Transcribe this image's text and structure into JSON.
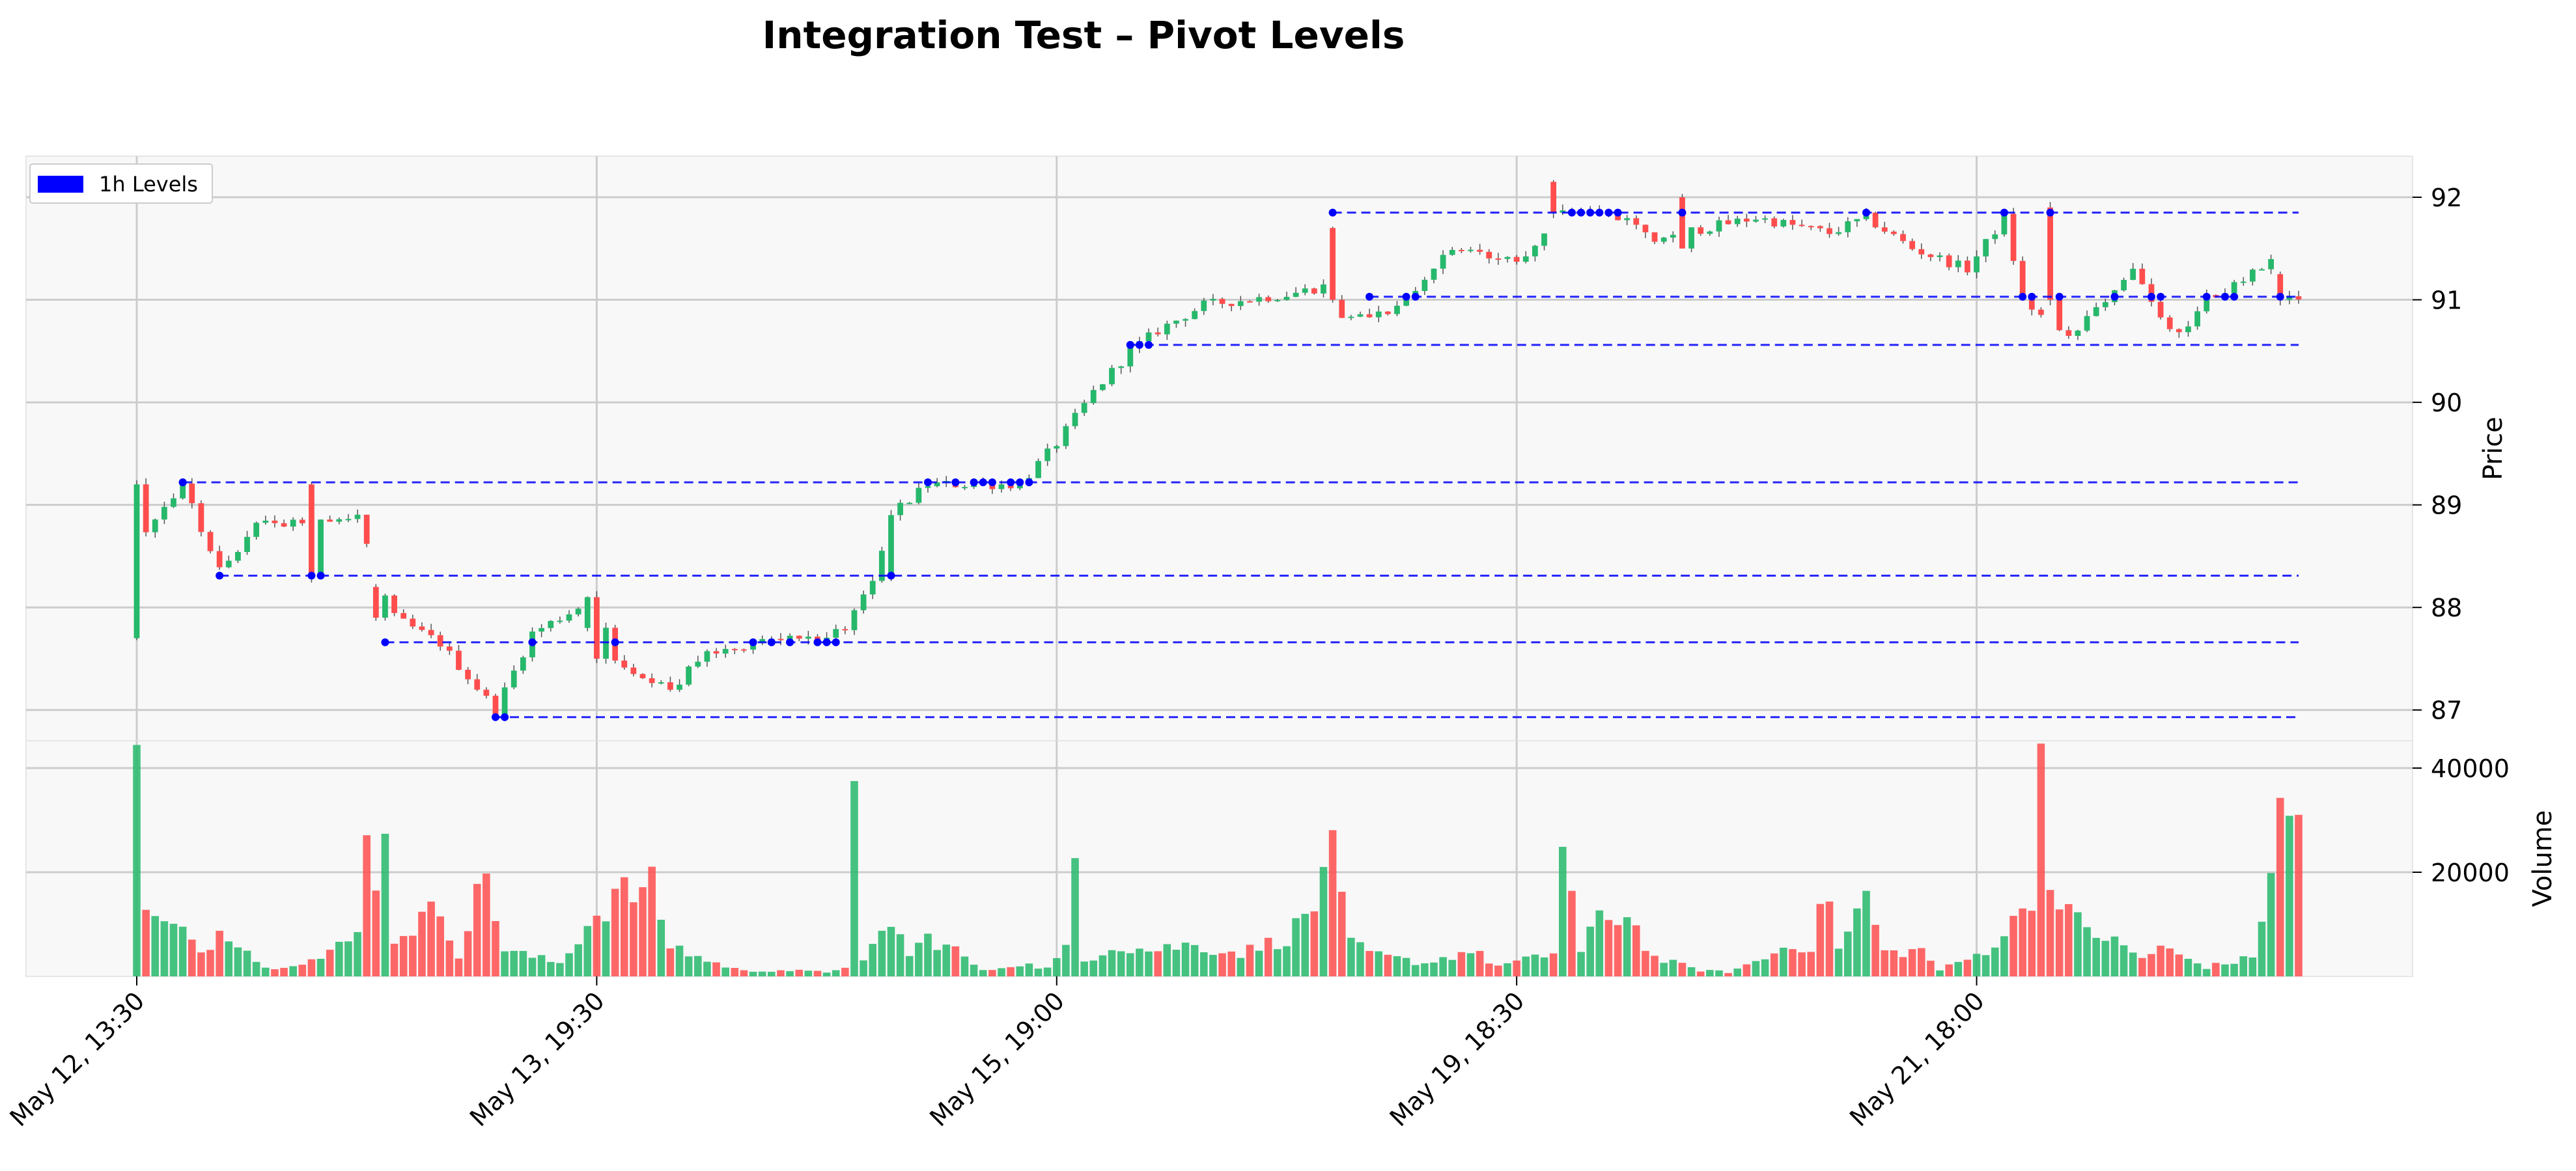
{
  "chart_data": {
    "type": "candlestick",
    "title": "Integration Test – Pivot Levels",
    "legend": {
      "label": "1h Levels",
      "color": "#0000ff",
      "placement": "top-left"
    },
    "colors": {
      "up": "#26b86b",
      "down": "#ff4d4d",
      "level_line": "#0000ff",
      "grid": "#cccccc",
      "panel_bg": "#f8f8f8"
    },
    "price_panel": {
      "ylabel": "Price",
      "ylim": [
        86.7,
        92.4
      ],
      "yticks": [
        "87",
        "88",
        "89",
        "90",
        "91",
        "92"
      ],
      "grid": true
    },
    "volume_panel": {
      "ylabel": "Volume",
      "ylim": [
        0,
        44000
      ],
      "yticks": [
        "20000",
        "40000"
      ],
      "grid": true
    },
    "x_axis": {
      "type": "bar-index",
      "count": 236,
      "ticks": [
        {
          "index": 0,
          "label": "May 12, 13:30"
        },
        {
          "index": 50,
          "label": "May 13, 19:30"
        },
        {
          "index": 100,
          "label": "May 15, 19:00"
        },
        {
          "index": 150,
          "label": "May 19, 18:30"
        },
        {
          "index": 200,
          "label": "May 21, 18:00"
        }
      ]
    },
    "price_keys": [
      [
        0,
        88.6
      ],
      [
        5,
        89.2
      ],
      [
        9,
        88.35
      ],
      [
        13,
        88.8
      ],
      [
        24,
        88.9
      ],
      [
        26,
        88.3
      ],
      [
        28,
        87.9
      ],
      [
        33,
        87.65
      ],
      [
        39,
        87.0
      ],
      [
        43,
        87.75
      ],
      [
        46,
        87.9
      ],
      [
        50,
        88.1
      ],
      [
        52,
        87.5
      ],
      [
        58,
        87.2
      ],
      [
        62,
        87.55
      ],
      [
        69,
        87.7
      ],
      [
        77,
        87.75
      ],
      [
        80,
        88.3
      ],
      [
        82,
        88.9
      ],
      [
        86,
        89.2
      ],
      [
        96,
        89.2
      ],
      [
        100,
        89.6
      ],
      [
        104,
        90.1
      ],
      [
        108,
        90.5
      ],
      [
        111,
        90.7
      ],
      [
        116,
        90.95
      ],
      [
        125,
        91.05
      ],
      [
        130,
        91.15
      ],
      [
        131,
        90.85
      ],
      [
        137,
        90.9
      ],
      [
        143,
        91.5
      ],
      [
        150,
        91.35
      ],
      [
        155,
        91.9
      ],
      [
        161,
        91.8
      ],
      [
        165,
        91.6
      ],
      [
        176,
        91.8
      ],
      [
        184,
        91.65
      ],
      [
        188,
        91.8
      ],
      [
        193,
        91.5
      ],
      [
        199,
        91.3
      ],
      [
        203,
        91.8
      ],
      [
        205,
        91.0
      ],
      [
        210,
        90.6
      ],
      [
        214,
        91.0
      ],
      [
        217,
        91.3
      ],
      [
        220,
        90.8
      ],
      [
        222,
        90.65
      ],
      [
        225,
        91.0
      ],
      [
        228,
        91.15
      ],
      [
        232,
        91.35
      ],
      [
        233,
        91.0
      ]
    ],
    "price_spikes": [
      [
        0,
        87.7,
        89.2,
        "down"
      ],
      [
        19,
        89.2,
        88.3,
        "down"
      ],
      [
        26,
        88.2,
        87.9,
        "down"
      ],
      [
        49,
        87.8,
        88.1,
        "up"
      ],
      [
        50,
        88.1,
        87.5,
        "down"
      ],
      [
        82,
        88.3,
        88.9,
        "up"
      ],
      [
        130,
        91.7,
        91.0,
        "down"
      ],
      [
        154,
        92.15,
        91.85,
        "down"
      ],
      [
        168,
        92.0,
        91.5,
        "down"
      ],
      [
        208,
        91.9,
        91.0,
        "down"
      ],
      [
        233,
        91.25,
        91.0,
        "down"
      ]
    ],
    "levels": [
      {
        "value": 91.85,
        "start": 130
      },
      {
        "value": 91.03,
        "start": 134
      },
      {
        "value": 90.56,
        "start": 108
      },
      {
        "value": 89.22,
        "start": 5
      },
      {
        "value": 88.31,
        "start": 9
      },
      {
        "value": 87.66,
        "start": 27
      },
      {
        "value": 86.93,
        "start": 39
      }
    ],
    "volume_keys": [
      [
        0,
        43000
      ],
      [
        1,
        11500
      ],
      [
        4,
        9000
      ],
      [
        8,
        5000
      ],
      [
        9,
        10800
      ],
      [
        12,
        5000
      ],
      [
        14,
        1500
      ],
      [
        20,
        3500
      ],
      [
        24,
        7800
      ],
      [
        25,
        31000
      ],
      [
        26,
        21000
      ],
      [
        27,
        24500
      ],
      [
        28,
        7500
      ],
      [
        33,
        13000
      ],
      [
        35,
        4500
      ],
      [
        38,
        20000
      ],
      [
        40,
        5000
      ],
      [
        46,
        2500
      ],
      [
        49,
        10000
      ],
      [
        52,
        15500
      ],
      [
        56,
        17000
      ],
      [
        58,
        6000
      ],
      [
        62,
        3000
      ],
      [
        66,
        1000
      ],
      [
        70,
        1200
      ],
      [
        75,
        800
      ],
      [
        77,
        2000
      ],
      [
        78,
        33000
      ],
      [
        79,
        2500
      ],
      [
        82,
        11000
      ],
      [
        84,
        4000
      ],
      [
        86,
        7500
      ],
      [
        89,
        5000
      ],
      [
        92,
        1000
      ],
      [
        96,
        2500
      ],
      [
        99,
        1500
      ],
      [
        101,
        5000
      ],
      [
        102,
        21500
      ],
      [
        103,
        3000
      ],
      [
        106,
        6000
      ],
      [
        110,
        5000
      ],
      [
        114,
        6000
      ],
      [
        120,
        4500
      ],
      [
        125,
        7500
      ],
      [
        128,
        13000
      ],
      [
        129,
        24000
      ],
      [
        130,
        22500
      ],
      [
        132,
        6000
      ],
      [
        135,
        4000
      ],
      [
        140,
        2500
      ],
      [
        145,
        5000
      ],
      [
        148,
        2000
      ],
      [
        152,
        3500
      ],
      [
        154,
        4500
      ],
      [
        155,
        26500
      ],
      [
        157,
        4500
      ],
      [
        159,
        11000
      ],
      [
        162,
        12000
      ],
      [
        165,
        3500
      ],
      [
        170,
        1200
      ],
      [
        173,
        800
      ],
      [
        177,
        3500
      ],
      [
        180,
        6500
      ],
      [
        182,
        5500
      ],
      [
        184,
        17000
      ],
      [
        185,
        5000
      ],
      [
        188,
        15500
      ],
      [
        190,
        4500
      ],
      [
        194,
        5000
      ],
      [
        196,
        1200
      ],
      [
        200,
        4000
      ],
      [
        202,
        6500
      ],
      [
        204,
        10000
      ],
      [
        206,
        16500
      ],
      [
        207,
        42500
      ],
      [
        208,
        22000
      ],
      [
        209,
        12500
      ],
      [
        211,
        10500
      ],
      [
        215,
        6500
      ],
      [
        218,
        3500
      ],
      [
        220,
        5500
      ],
      [
        225,
        1800
      ],
      [
        230,
        3500
      ],
      [
        233,
        30000
      ]
    ]
  }
}
